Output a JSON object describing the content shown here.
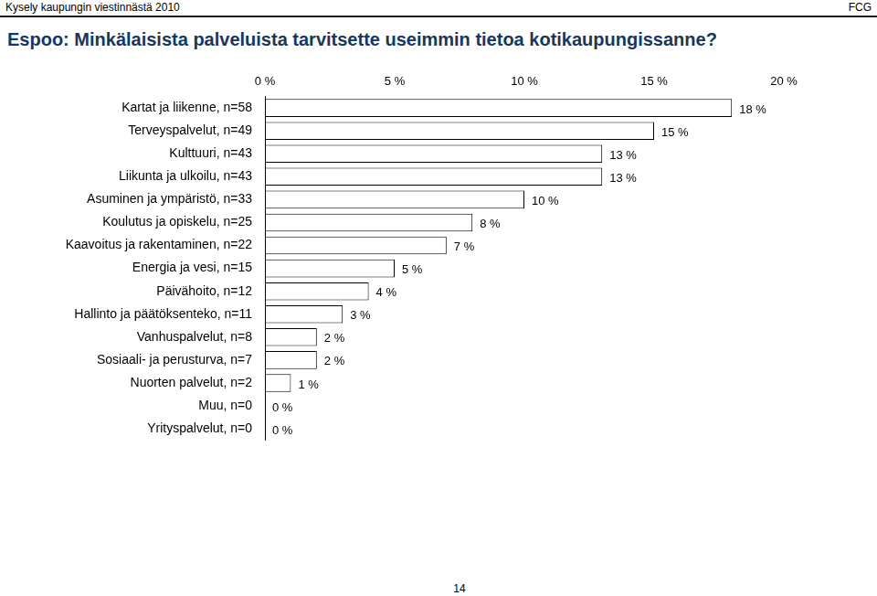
{
  "page": {
    "header": "Kysely kaupungin viestinnästä 2010",
    "brand": "FCG",
    "page_number": "14"
  },
  "chart_data": {
    "type": "bar",
    "orientation": "horizontal",
    "title": "Espoo: Minkälaisista palveluista tarvitsette useimmin tietoa kotikaupungissanne?",
    "categories": [
      "Kartat ja liikenne, n=58",
      "Terveyspalvelut, n=49",
      "Kulttuuri, n=43",
      "Liikunta ja ulkoilu, n=43",
      "Asuminen ja ympäristö, n=33",
      "Koulutus ja opiskelu, n=25",
      "Kaavoitus ja rakentaminen, n=22",
      "Energia ja vesi, n=15",
      "Päivähoito, n=12",
      "Hallinto ja päätöksenteko, n=11",
      "Vanhuspalvelut, n=8",
      "Sosiaali- ja perusturva, n=7",
      "Nuorten palvelut, n=2",
      "Muu, n=0",
      "Yrityspalvelut, n=0"
    ],
    "values": [
      18,
      15,
      13,
      13,
      10,
      8,
      7,
      5,
      4,
      3,
      2,
      2,
      1,
      0,
      0
    ],
    "value_labels": [
      "18 %",
      "15 %",
      "13 %",
      "13 %",
      "10 %",
      "8 %",
      "7 %",
      "5 %",
      "4 %",
      "3 %",
      "2 %",
      "2 %",
      "1 %",
      "0 %",
      "0 %"
    ],
    "color": "#ffffff",
    "xlim": [
      0,
      20
    ],
    "xticks": [
      {
        "value": 0,
        "label": "0 %"
      },
      {
        "value": 5,
        "label": "5 %"
      },
      {
        "value": 10,
        "label": "10 %"
      },
      {
        "value": 15,
        "label": "15 %"
      },
      {
        "value": 20,
        "label": "20 %"
      }
    ],
    "grid": false,
    "data_labels": true
  }
}
